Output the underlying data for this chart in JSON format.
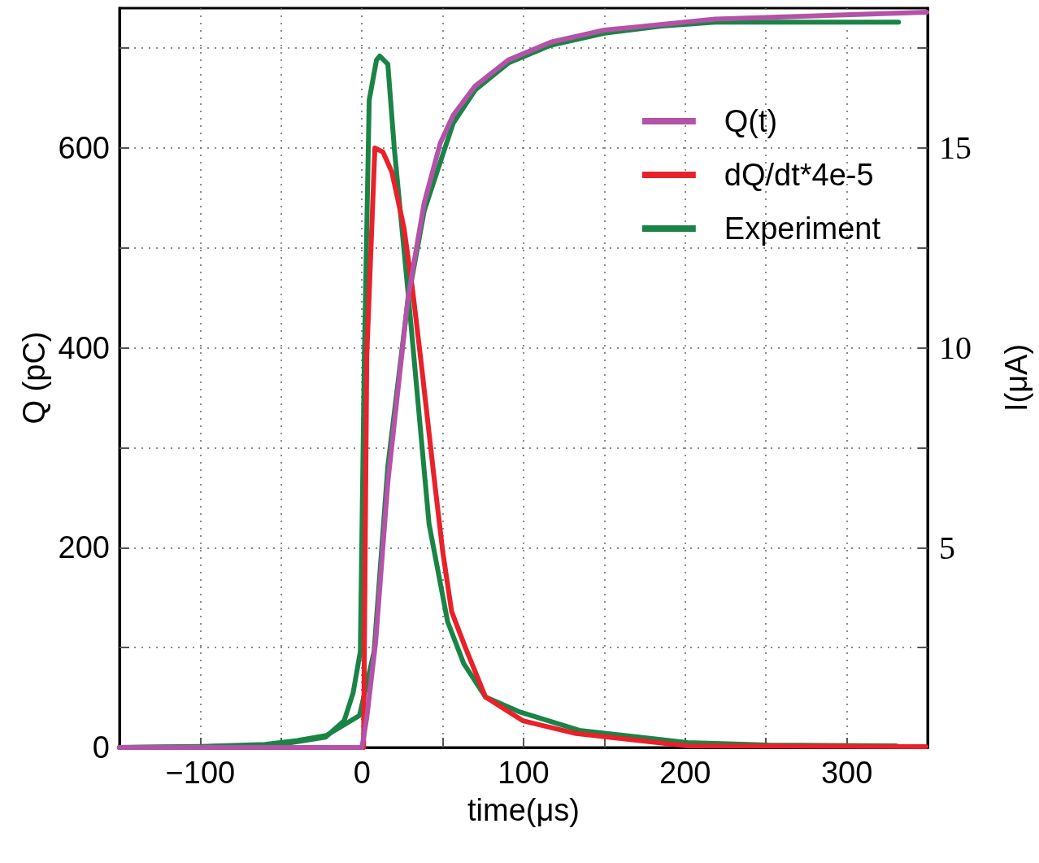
{
  "chart_data": {
    "type": "line",
    "xlabel": "time(μs)",
    "ylabel": "Q (pC)",
    "y2label": "I(μA)",
    "xlim": [
      -150,
      350
    ],
    "xticks": [
      {
        "value": -100,
        "label": "−100"
      },
      {
        "value": -50,
        "label": null
      },
      0,
      {
        "value": 50,
        "label": null
      },
      100,
      {
        "value": 150,
        "label": null
      },
      200,
      {
        "value": 250,
        "label": null
      },
      300
    ],
    "ylim": [
      0,
      740
    ],
    "yticks": [
      0,
      {
        "value": 100,
        "label": null
      },
      200,
      {
        "value": 300,
        "label": null
      },
      400,
      {
        "value": 500,
        "label": null
      },
      600,
      {
        "value": 700,
        "label": null
      }
    ],
    "y2lim": [
      0,
      18.5
    ],
    "y2ticks": [
      {
        "value": 2.5,
        "label": null
      },
      5,
      {
        "value": 7.5,
        "label": null
      },
      10,
      {
        "value": 12.5,
        "label": null
      },
      15,
      {
        "value": 17.5,
        "label": null
      }
    ],
    "grid": true,
    "legend": "top right",
    "marker": "none",
    "line_style": "solid",
    "series": [
      {
        "name": "Q(t)",
        "color": "#b452a8",
        "x": [
          -150,
          0,
          3,
          8.5,
          16,
          28.5,
          38.5,
          48.5,
          56.5,
          70,
          90.5,
          117,
          150,
          218.5,
          349.5
        ],
        "values": [
          0,
          0,
          30,
          106,
          265,
          450,
          545,
          605,
          633,
          662,
          688,
          706,
          718,
          729,
          736
        ]
      },
      {
        "name": "dQ/dt*4e-5",
        "color": "#e8212a",
        "axis": "y2",
        "x": [
          1,
          3,
          8,
          13,
          18.5,
          26,
          31.5,
          37,
          44.5,
          50,
          55.5,
          64,
          76.5,
          99.5,
          132.5,
          201.5,
          349
        ],
        "values": [
          0,
          9.8,
          15.0,
          14.9,
          14.4,
          13.0,
          11.4,
          9.5,
          6.8,
          4.9,
          3.4,
          2.5,
          1.26,
          0.67,
          0.35,
          0.04,
          0.02
        ]
      },
      {
        "name": "Experiment",
        "color": "#1a8446",
        "axis": "y2",
        "x": [
          -150,
          -100,
          -56.5,
          -22.5,
          -11,
          -5.5,
          -1,
          1.5,
          4.5,
          9,
          11,
          16,
          20,
          28.5,
          41.5,
          53,
          63,
          76.5,
          97,
          134.5,
          201.5,
          251.5,
          330.5
        ],
        "values": [
          0,
          0.02,
          0.04,
          0.26,
          0.67,
          1.36,
          2.4,
          9.8,
          16.2,
          17.2,
          17.3,
          17.1,
          15.0,
          11.4,
          5.6,
          3.15,
          2.1,
          1.26,
          0.9,
          0.43,
          0.12,
          0.06,
          0.04
        ]
      },
      {
        "color": "#1a8446",
        "x": [
          -150,
          -100,
          -60,
          -40,
          -22,
          -1.5,
          7.5,
          16,
          28.5,
          38.5,
          48.5,
          56.5,
          70,
          90.5,
          117,
          150,
          185.5,
          218.5,
          332
        ],
        "values": [
          0,
          1,
          3,
          7,
          12,
          32,
          96,
          281,
          448,
          537,
          586,
          625,
          658,
          685,
          703,
          715,
          722,
          726,
          726
        ]
      }
    ]
  }
}
